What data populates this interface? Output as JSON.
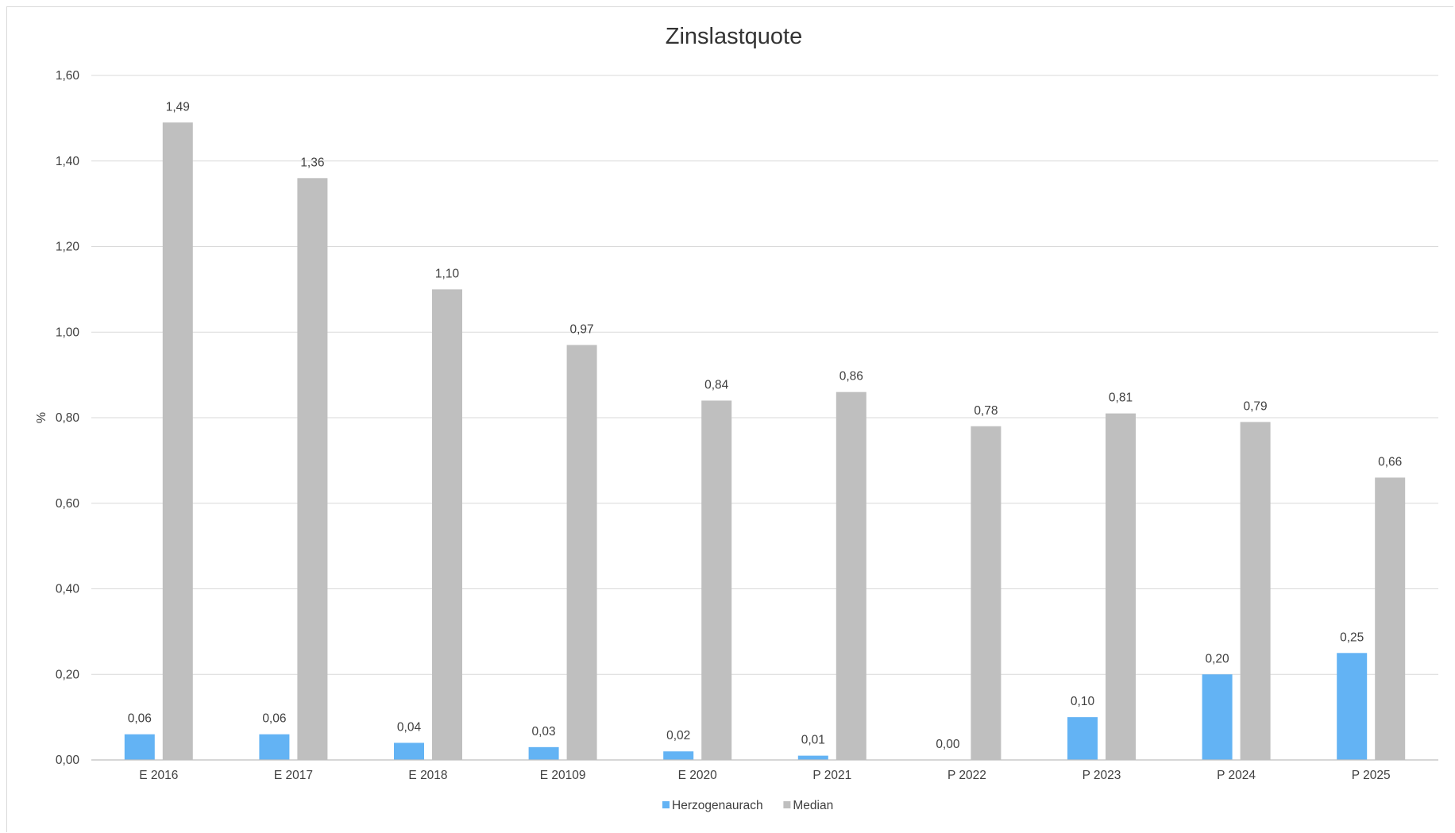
{
  "chart_data": {
    "type": "bar",
    "title": "Zinslastquote",
    "xlabel": "",
    "ylabel": "%",
    "ylim": [
      0,
      1.6
    ],
    "ytick_values": [
      0,
      0.2,
      0.4,
      0.6,
      0.8,
      1.0,
      1.2,
      1.4,
      1.6
    ],
    "ytick_labels": [
      "0,00",
      "0,20",
      "0,40",
      "0,60",
      "0,80",
      "1,00",
      "1,20",
      "1,40",
      "1,60"
    ],
    "grid": true,
    "legend_position": "bottom",
    "categories": [
      "E 2016",
      "E 2017",
      "E 2018",
      "E 20109",
      "E 2020",
      "P 2021",
      "P 2022",
      "P 2023",
      "P 2024",
      "P 2025"
    ],
    "series": [
      {
        "name": "Herzogenaurach",
        "color": "#63b3f4",
        "values": [
          0.06,
          0.06,
          0.04,
          0.03,
          0.02,
          0.01,
          0.0,
          0.1,
          0.2,
          0.25
        ],
        "labels": [
          "0,06",
          "0,06",
          "0,04",
          "0,03",
          "0,02",
          "0,01",
          "0,00",
          "0,10",
          "0,20",
          "0,25"
        ]
      },
      {
        "name": "Median",
        "color": "#bfbfbf",
        "values": [
          1.49,
          1.36,
          1.1,
          0.97,
          0.84,
          0.86,
          0.78,
          0.81,
          0.79,
          0.66
        ],
        "labels": [
          "1,49",
          "1,36",
          "1,10",
          "0,97",
          "0,84",
          "0,86",
          "0,78",
          "0,81",
          "0,79",
          "0,66"
        ]
      }
    ]
  }
}
